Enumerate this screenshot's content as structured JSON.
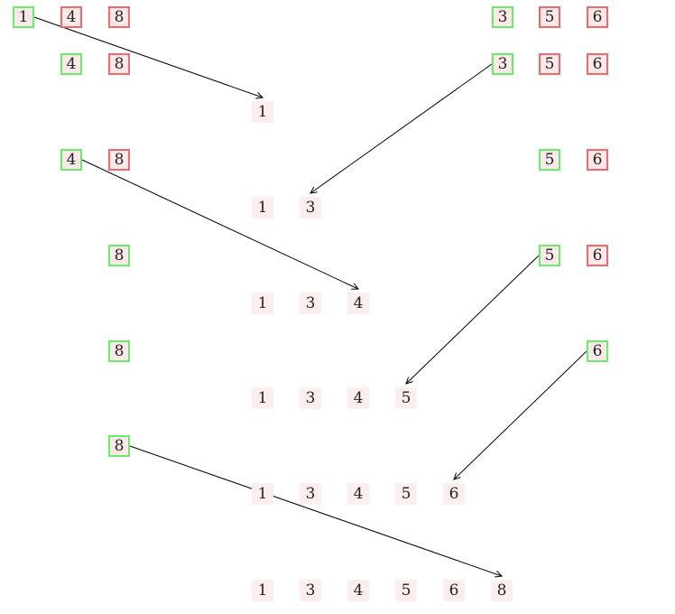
{
  "colors": {
    "picked": "#66ee66",
    "waiting": "#f06a6a",
    "merged_bg": "#fdeeee",
    "box_bg": "#fbe9e9"
  },
  "steps": [
    {
      "left": [
        {
          "v": "1",
          "s": "picked"
        },
        {
          "v": "4",
          "s": "waiting"
        },
        {
          "v": "8",
          "s": "waiting"
        }
      ],
      "right": [
        {
          "v": "3",
          "s": "picked"
        },
        {
          "v": "5",
          "s": "waiting"
        },
        {
          "v": "6",
          "s": "waiting"
        }
      ],
      "arrow_from": "left",
      "merged": []
    },
    {
      "left": [
        {
          "v": "4",
          "s": "picked"
        },
        {
          "v": "8",
          "s": "waiting"
        }
      ],
      "right": [
        {
          "v": "3",
          "s": "picked"
        },
        {
          "v": "5",
          "s": "waiting"
        },
        {
          "v": "6",
          "s": "waiting"
        }
      ],
      "arrow_from": "right",
      "merged": [
        "1"
      ]
    },
    {
      "left": [
        {
          "v": "4",
          "s": "picked"
        },
        {
          "v": "8",
          "s": "waiting"
        }
      ],
      "right": [
        {
          "v": "5",
          "s": "picked"
        },
        {
          "v": "6",
          "s": "waiting"
        }
      ],
      "arrow_from": "left",
      "merged": [
        "1",
        "3"
      ]
    },
    {
      "left": [
        {
          "v": "8",
          "s": "picked"
        }
      ],
      "right": [
        {
          "v": "5",
          "s": "picked"
        },
        {
          "v": "6",
          "s": "waiting"
        }
      ],
      "arrow_from": "right",
      "merged": [
        "1",
        "3",
        "4"
      ]
    },
    {
      "left": [
        {
          "v": "8",
          "s": "picked"
        }
      ],
      "right": [
        {
          "v": "6",
          "s": "picked"
        }
      ],
      "arrow_from": "right",
      "merged": [
        "1",
        "3",
        "4",
        "5"
      ]
    },
    {
      "left": [
        {
          "v": "8",
          "s": "picked"
        }
      ],
      "right": [],
      "arrow_from": "left",
      "merged": [
        "1",
        "3",
        "4",
        "5",
        "6"
      ]
    },
    {
      "left": [],
      "right": [],
      "arrow_from": null,
      "merged": [
        "1",
        "3",
        "4",
        "5",
        "6",
        "8"
      ]
    }
  ]
}
